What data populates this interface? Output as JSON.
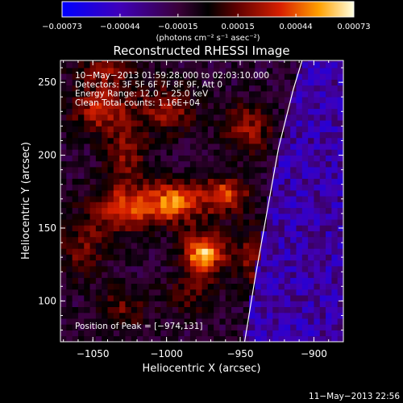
{
  "chart_data": {
    "type": "heatmap",
    "title": "Reconstructed RHESSI Image",
    "xlabel": "Heliocentric X (arcsec)",
    "ylabel": "Heliocentric Y (arcsec)",
    "xlim": [
      -1072,
      -880
    ],
    "ylim": [
      72,
      265
    ],
    "x_ticks": [
      -1050,
      -1000,
      -950,
      -900
    ],
    "x_tick_labels": [
      "−1050",
      "−1000",
      "−950",
      "−900"
    ],
    "y_ticks": [
      100,
      150,
      200,
      250
    ],
    "y_tick_labels": [
      "100",
      "150",
      "200",
      "250"
    ],
    "colorbar": {
      "range": [
        -0.00073,
        0.00073
      ],
      "ticks": [
        -0.00073,
        -0.00044,
        -0.00015,
        0.00015,
        0.00044,
        0.00073
      ],
      "tick_labels": [
        "−0.00073",
        "−0.00044",
        "−0.00015",
        "0.00015",
        "0.00044",
        "0.00073"
      ],
      "unit_label": "(photons cm⁻² s⁻¹ asec⁻²)"
    },
    "info_lines": [
      "10−May−2013 01:59:28.000 to 02:03:10.000",
      "Detectors: 3F 5F 6F 7F 8F 9F, Att 0",
      "Energy Range: 12.0 − 25.0 keV",
      "Clean      Total counts: 1.16E+04"
    ],
    "peak_label": "Position of Peak = [−974,131]",
    "peak": [
      -974,
      131
    ],
    "limb_curve": [
      [
        -947,
        72
      ],
      [
        -940,
        115
      ],
      [
        -932,
        160
      ],
      [
        -924,
        205
      ],
      [
        -914,
        245
      ],
      [
        -908,
        265
      ]
    ],
    "sources": [
      {
        "x": -975,
        "y": 133,
        "amp": 0.00073,
        "sx": 10,
        "sy": 10
      },
      {
        "x": -995,
        "y": 168,
        "amp": 0.00058,
        "sx": 14,
        "sy": 10
      },
      {
        "x": -960,
        "y": 173,
        "amp": 0.0005,
        "sx": 11,
        "sy": 9
      },
      {
        "x": -1030,
        "y": 163,
        "amp": 0.00048,
        "sx": 16,
        "sy": 12
      },
      {
        "x": -1045,
        "y": 232,
        "amp": 0.00042,
        "sx": 14,
        "sy": 12
      },
      {
        "x": -1000,
        "y": 232,
        "amp": 0.00035,
        "sx": 14,
        "sy": 12
      },
      {
        "x": -1028,
        "y": 200,
        "amp": 0.00032,
        "sx": 10,
        "sy": 14
      },
      {
        "x": -945,
        "y": 218,
        "amp": 0.00036,
        "sx": 12,
        "sy": 12
      },
      {
        "x": -940,
        "y": 130,
        "amp": 0.00032,
        "sx": 10,
        "sy": 16
      },
      {
        "x": -1058,
        "y": 135,
        "amp": 0.00028,
        "sx": 11,
        "sy": 14
      },
      {
        "x": -1030,
        "y": 95,
        "amp": 0.00026,
        "sx": 12,
        "sy": 10
      },
      {
        "x": -983,
        "y": 105,
        "amp": 0.00022,
        "sx": 12,
        "sy": 10
      },
      {
        "x": -1040,
        "y": 260,
        "amp": 0.0003,
        "sx": 16,
        "sy": 8
      }
    ]
  },
  "footer_timestamp": "11−May−2013 22:56"
}
